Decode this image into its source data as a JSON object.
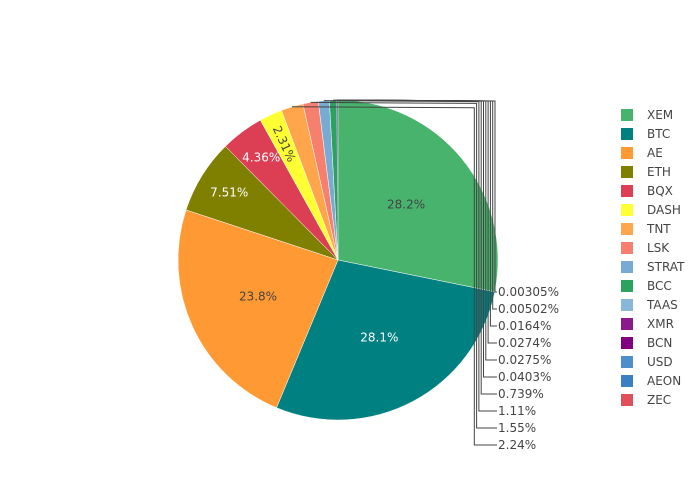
{
  "chart_data": {
    "type": "pie",
    "title": "",
    "legend_position": "right",
    "slices": [
      {
        "label": "XEM",
        "value": 28.2,
        "color": "#48b36c",
        "display": "28.2%",
        "text_color": "#444444"
      },
      {
        "label": "BTC",
        "value": 28.1,
        "color": "#008080",
        "display": "28.1%",
        "text_color": "#ffffff"
      },
      {
        "label": "AE",
        "value": 23.8,
        "color": "#ff9933",
        "display": "23.8%",
        "text_color": "#444444"
      },
      {
        "label": "ETH",
        "value": 7.51,
        "color": "#808000",
        "display": "7.51%",
        "text_color": "#ffffff"
      },
      {
        "label": "BQX",
        "value": 4.36,
        "color": "#dc3f54",
        "display": "4.36%",
        "text_color": "#ffffff"
      },
      {
        "label": "DASH",
        "value": 2.31,
        "color": "#ffff33",
        "display": "2.31%",
        "text_color": "#444444"
      },
      {
        "label": "TNT",
        "value": 2.24,
        "color": "#ffa64d",
        "display": "2.24%",
        "text_color": "#444444"
      },
      {
        "label": "LSK",
        "value": 1.55,
        "color": "#f77f6e",
        "display": "1.55%",
        "text_color": "#444444"
      },
      {
        "label": "STRAT",
        "value": 1.11,
        "color": "#78abd3",
        "display": "1.11%",
        "text_color": "#444444"
      },
      {
        "label": "BCC",
        "value": 0.739,
        "color": "#2ca25f",
        "display": "0.739%",
        "text_color": "#444444"
      },
      {
        "label": "TAAS",
        "value": 0.0403,
        "color": "#88b7d9",
        "display": "0.0403%",
        "text_color": "#444444"
      },
      {
        "label": "XMR",
        "value": 0.0275,
        "color": "#8b1a8b",
        "display": "0.0275%",
        "text_color": "#444444"
      },
      {
        "label": "BCN",
        "value": 0.0274,
        "color": "#800080",
        "display": "0.0274%",
        "text_color": "#444444"
      },
      {
        "label": "USD",
        "value": 0.0164,
        "color": "#4c8fca",
        "display": "0.0164%",
        "text_color": "#444444"
      },
      {
        "label": "AEON",
        "value": 0.00502,
        "color": "#3a7fc1",
        "display": "0.00502%",
        "text_color": "#444444"
      },
      {
        "label": "ZEC",
        "value": 0.00305,
        "color": "#e0505a",
        "display": "0.00305%",
        "text_color": "#444444"
      }
    ]
  }
}
